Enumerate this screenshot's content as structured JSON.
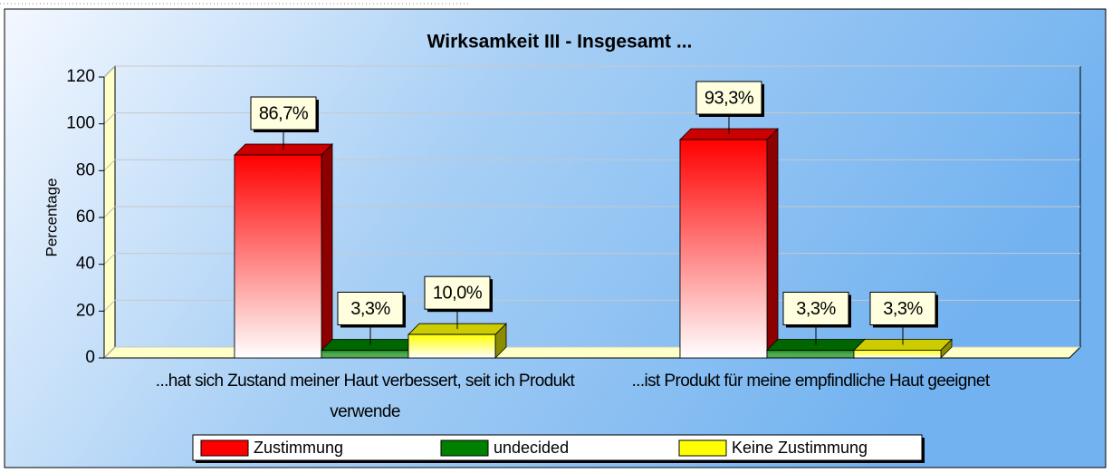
{
  "chart_data": {
    "type": "bar3d",
    "title": "Wirksamkeit III - Insgesamt ...",
    "ylabel": "Percentage",
    "categories": [
      "...hat sich Zustand meiner Haut verbessert, seit ich Produkt verwende",
      "...ist Produkt für meine empfindliche Haut geeignet"
    ],
    "series": [
      {
        "name": "Zustimmung",
        "color": "#ff0000",
        "values": [
          86.7,
          93.3
        ],
        "value_labels": [
          "86,7%",
          "93,3%"
        ]
      },
      {
        "name": "undecided",
        "color": "#008000",
        "values": [
          3.3,
          3.3
        ],
        "value_labels": [
          "3,3%",
          "3,3%"
        ]
      },
      {
        "name": "Keine Zustimmung",
        "color": "#ffff00",
        "values": [
          10.0,
          3.3
        ],
        "value_labels": [
          "10,0%",
          "3,3%"
        ]
      }
    ],
    "ylim": [
      0,
      120
    ],
    "yticks": [
      0,
      20,
      40,
      60,
      80,
      100,
      120
    ],
    "grid": true,
    "legend": "bottom"
  }
}
